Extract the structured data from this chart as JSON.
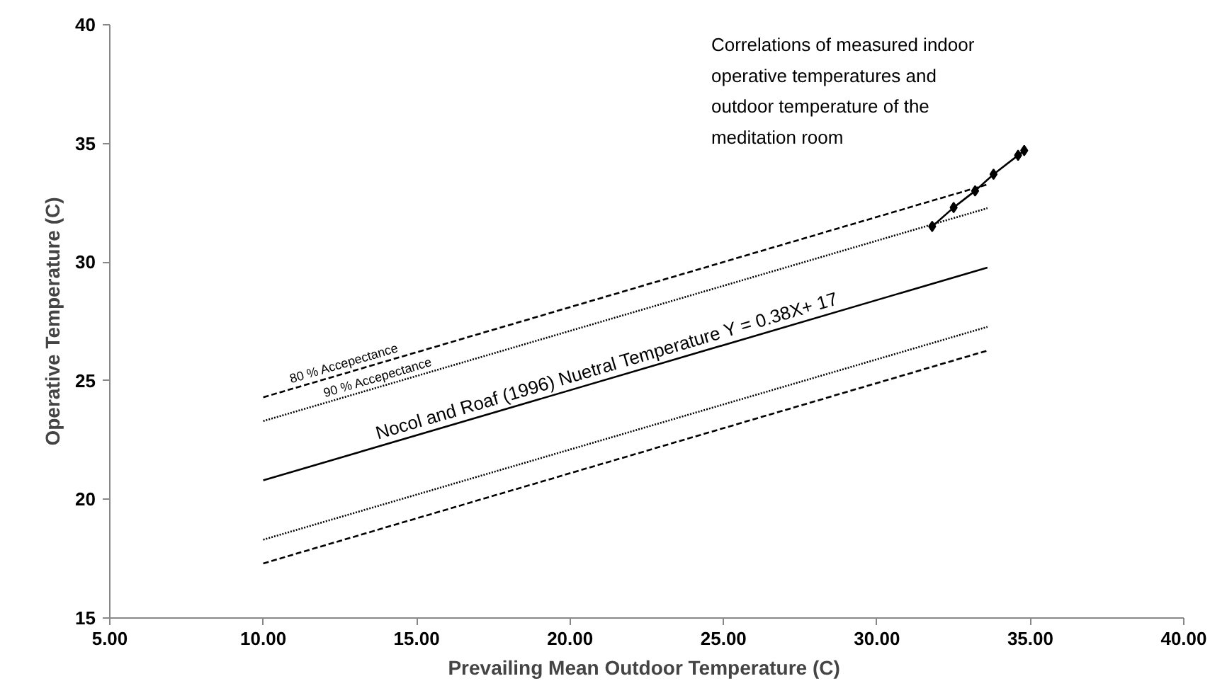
{
  "chart_data": {
    "type": "line",
    "xlabel": "Prevailing  Mean Outdoor Temperature (C)",
    "ylabel": "Operative Temperature (C)",
    "xlim": [
      5,
      40
    ],
    "ylim": [
      15,
      40
    ],
    "xticks": [
      {
        "value": 5,
        "label": "5.00"
      },
      {
        "value": 10,
        "label": "10.00"
      },
      {
        "value": 15,
        "label": "15.00"
      },
      {
        "value": 20,
        "label": "20.00"
      },
      {
        "value": 25,
        "label": "25.00"
      },
      {
        "value": 30,
        "label": "30.00"
      },
      {
        "value": 35,
        "label": "35.00"
      },
      {
        "value": 40,
        "label": "40.00"
      }
    ],
    "yticks": [
      15,
      20,
      25,
      30,
      35,
      40
    ],
    "grid": false,
    "series": [
      {
        "color": "#000000",
        "x": [
          10,
          33.6
        ],
        "values": [
          20.8,
          29.77
        ],
        "line_style": "solid",
        "marker": "none"
      },
      {
        "color": "#000000",
        "x": [
          10,
          33.6
        ],
        "values": [
          23.3,
          32.27
        ],
        "line_style": "dotted",
        "marker": "none"
      },
      {
        "color": "#000000",
        "x": [
          10,
          33.6
        ],
        "values": [
          18.3,
          27.27
        ],
        "line_style": "dotted",
        "marker": "none"
      },
      {
        "color": "#000000",
        "x": [
          10,
          33.6
        ],
        "values": [
          24.3,
          33.27
        ],
        "line_style": "dashed",
        "marker": "none"
      },
      {
        "color": "#000000",
        "x": [
          10,
          33.6
        ],
        "values": [
          17.3,
          26.27
        ],
        "line_style": "dashed",
        "marker": "none"
      },
      {
        "color": "#000000",
        "x": [
          31.8,
          32.5,
          33.2,
          33.8,
          34.6,
          34.8
        ],
        "values": [
          31.5,
          32.3,
          33.0,
          33.7,
          34.5,
          34.7
        ],
        "line_style": "solid",
        "marker": "diamond"
      }
    ],
    "annotations": [
      {
        "text": "80 % Accepectance",
        "x": 12.7,
        "y": 25.33
      },
      {
        "text": "90 % Accepectance",
        "x": 13.8,
        "y": 24.74
      },
      {
        "text": "Nocol and Roaf (1996) Nuetral Temperature Y = 0.38X+ 17",
        "x": 21.3,
        "y": 25.09
      },
      "Correlations of measured indoor operative temperatures and outdoor temperature of the meditation room"
    ]
  }
}
